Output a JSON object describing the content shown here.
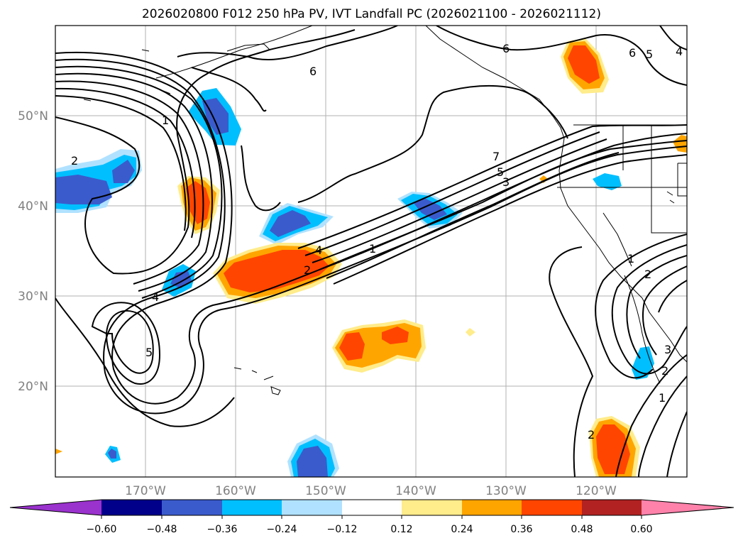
{
  "title": "2026020800 F012 250 hPa PV, IVT Landfall PC (2026021100 - 2026021112)",
  "map": {
    "lat_labels": [
      "50°N",
      "40°N",
      "30°N",
      "20°N"
    ],
    "lon_labels": [
      "170°W",
      "160°W",
      "150°W",
      "140°W",
      "130°W",
      "120°W"
    ],
    "contour_labels": [
      "1",
      "2",
      "4",
      "5",
      "6",
      "6",
      "7",
      "5",
      "3",
      "1",
      "2",
      "4",
      "1",
      "2",
      "3",
      "2",
      "1",
      "6",
      "5",
      "4",
      "2"
    ]
  },
  "colorbar": {
    "colors": [
      "#9a32cd",
      "#00008b",
      "#3a5bcc",
      "#00bfff",
      "#b0e2ff",
      "#ffffff",
      "#ffec8b",
      "#ffa500",
      "#ff4500",
      "#b22222",
      "#ff82ab"
    ],
    "ticks": [
      "−0.60",
      "−0.48",
      "−0.36",
      "−0.24",
      "−0.12",
      "0.12",
      "0.24",
      "0.36",
      "0.48",
      "0.60"
    ]
  }
}
